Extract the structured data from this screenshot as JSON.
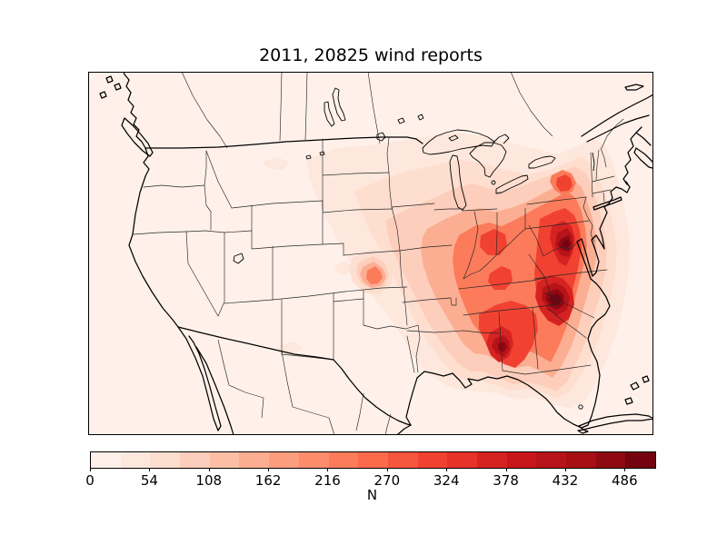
{
  "figure": {
    "title": "2011, 20825 wind reports",
    "background": "#ffffff"
  },
  "chart_data": {
    "type": "heatmap",
    "title": "2011, 20825 wind reports",
    "year": "2011",
    "total_reports": 20825,
    "phenomenon": "wind reports",
    "map_region": "Continental United States with southern Canada, northern Mexico, Cuba and Bahamas visible",
    "projection_style": "basemap contourf, coastlines and state borders in black",
    "colormap": "Reds",
    "grid": false,
    "legend_position": "horizontal colorbar below map",
    "colorbar": {
      "label": "N",
      "ticks": [
        0,
        54,
        108,
        162,
        216,
        270,
        324,
        378,
        432,
        486
      ],
      "tick_labels": [
        "0",
        "54",
        "108",
        "162",
        "216",
        "270",
        "324",
        "378",
        "432",
        "486"
      ],
      "vmin": 0,
      "vmax": 513,
      "band_size": 27,
      "n_bands": 19,
      "band_colors": [
        "#fff1ea",
        "#fee8dd",
        "#fedecf",
        "#fdcebb",
        "#fcbfa6",
        "#fcae92",
        "#fc9d7e",
        "#fc8c6c",
        "#fb7b5b",
        "#fb6a4a",
        "#f6563d",
        "#f14231",
        "#e63228",
        "#d62322",
        "#c7171c",
        "#b71319",
        "#a70f15",
        "#8e0912",
        "#74030f"
      ]
    },
    "line_colors": {
      "coastline": "#000000",
      "state_borders": "#262626"
    },
    "hotspots": [
      {
        "region": "Virginia / central Appalachians",
        "peak_N": 500
      },
      {
        "region": "North Carolina / South Carolina Piedmont",
        "peak_N": 513
      },
      {
        "region": "northern Alabama",
        "peak_N": 460
      },
      {
        "region": "Ohio Valley (Ohio / Kentucky / Indiana)",
        "peak_N": 330
      },
      {
        "region": "eastern Pennsylvania / New Jersey",
        "peak_N": 300
      },
      {
        "region": "southeastern Kansas",
        "peak_N": 270
      },
      {
        "region": "broad Midwest to Gulf Coast light shading",
        "peak_N": 120
      },
      {
        "region": "western US and far plains",
        "peak_N": 27
      }
    ]
  }
}
